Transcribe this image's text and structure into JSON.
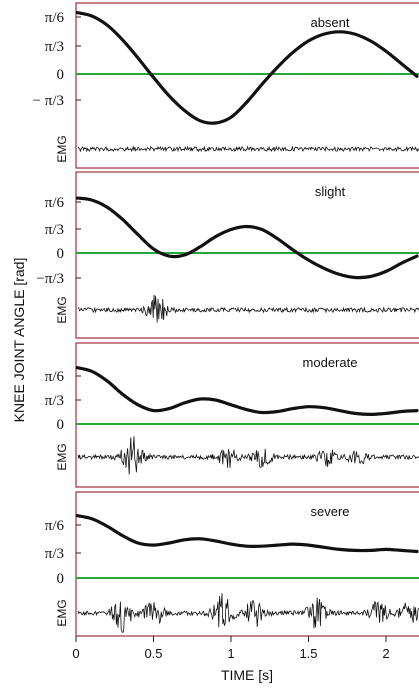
{
  "chart_data": {
    "type": "line",
    "ylabel": "KNEE JOINT ANGLE [rad]",
    "xlabel": "TIME [s]",
    "x_ticks": [
      {
        "value": 0,
        "label": "0"
      },
      {
        "value": 0.5,
        "label": "0.5"
      },
      {
        "value": 1,
        "label": "1"
      },
      {
        "value": 1.5,
        "label": "1.5"
      },
      {
        "value": 2,
        "label": "2"
      }
    ],
    "xlim": [
      0,
      2.2
    ],
    "y_ticks": [
      {
        "value": 1.0,
        "label": "π/6"
      },
      {
        "value": 0.5,
        "label": "π/3"
      },
      {
        "value": 0,
        "label": "0"
      },
      {
        "value": -0.5,
        "label": "− π/3"
      }
    ],
    "baseline_color": "#22a83a",
    "panel_border_color": "#a0303a",
    "emg_label": "EMG",
    "panels": [
      {
        "condition": "absent",
        "y_tick_labels": [
          "π/6",
          "π/3",
          "0",
          "− π/3"
        ],
        "angle": {
          "x": [
            0,
            0.1,
            0.2,
            0.3,
            0.4,
            0.5,
            0.6,
            0.7,
            0.8,
            0.9,
            1.0,
            1.1,
            1.2,
            1.3,
            1.4,
            1.5,
            1.6,
            1.7,
            1.8,
            1.9,
            2.0,
            2.1,
            2.2
          ],
          "y": [
            1.08,
            1.02,
            0.86,
            0.6,
            0.28,
            -0.06,
            -0.38,
            -0.64,
            -0.82,
            -0.86,
            -0.76,
            -0.5,
            -0.18,
            0.12,
            0.38,
            0.58,
            0.7,
            0.74,
            0.7,
            0.58,
            0.4,
            0.18,
            -0.04
          ]
        },
        "emg_bursts": []
      },
      {
        "condition": "slight",
        "y_tick_labels": [
          "π/6",
          "π/3",
          "0",
          "−π/3"
        ],
        "angle": {
          "x": [
            0,
            0.1,
            0.2,
            0.3,
            0.4,
            0.5,
            0.6,
            0.7,
            0.8,
            0.9,
            1.0,
            1.1,
            1.2,
            1.3,
            1.4,
            1.5,
            1.6,
            1.7,
            1.8,
            1.9,
            2.0,
            2.1,
            2.2
          ],
          "y": [
            1.08,
            1.04,
            0.9,
            0.66,
            0.36,
            0.08,
            -0.06,
            -0.04,
            0.12,
            0.32,
            0.46,
            0.52,
            0.46,
            0.28,
            0.06,
            -0.14,
            -0.3,
            -0.42,
            -0.48,
            -0.46,
            -0.36,
            -0.2,
            -0.06
          ]
        },
        "emg_bursts": [
          {
            "t": 0.52,
            "amp": 0.7
          }
        ]
      },
      {
        "condition": "moderate",
        "y_tick_labels": [
          "π/6",
          "π/3",
          "0"
        ],
        "angle": {
          "x": [
            0,
            0.1,
            0.2,
            0.3,
            0.4,
            0.5,
            0.6,
            0.7,
            0.8,
            0.9,
            1.0,
            1.1,
            1.2,
            1.3,
            1.4,
            1.5,
            1.6,
            1.7,
            1.8,
            1.9,
            2.0,
            2.1,
            2.2
          ],
          "y": [
            1.18,
            1.1,
            0.9,
            0.62,
            0.4,
            0.28,
            0.32,
            0.44,
            0.52,
            0.5,
            0.4,
            0.3,
            0.24,
            0.26,
            0.32,
            0.36,
            0.34,
            0.28,
            0.22,
            0.2,
            0.22,
            0.26,
            0.28
          ]
        },
        "emg_bursts": [
          {
            "t": 0.36,
            "amp": 1.0
          },
          {
            "t": 0.98,
            "amp": 0.5
          },
          {
            "t": 1.2,
            "amp": 0.45
          },
          {
            "t": 1.62,
            "amp": 0.4
          },
          {
            "t": 1.82,
            "amp": 0.35
          }
        ]
      },
      {
        "condition": "severe",
        "y_tick_labels": [
          "π/6",
          "π/3",
          "0"
        ],
        "angle": {
          "x": [
            0,
            0.1,
            0.2,
            0.3,
            0.4,
            0.5,
            0.6,
            0.7,
            0.8,
            0.9,
            1.0,
            1.1,
            1.2,
            1.3,
            1.4,
            1.5,
            1.6,
            1.7,
            1.8,
            1.9,
            2.0,
            2.1,
            2.2
          ],
          "y": [
            1.18,
            1.12,
            0.98,
            0.8,
            0.66,
            0.62,
            0.66,
            0.72,
            0.74,
            0.7,
            0.64,
            0.6,
            0.6,
            0.62,
            0.64,
            0.62,
            0.58,
            0.54,
            0.52,
            0.52,
            0.54,
            0.52,
            0.5
          ]
        },
        "emg_bursts": [
          {
            "t": 0.3,
            "amp": 1.0
          },
          {
            "t": 0.5,
            "amp": 0.6
          },
          {
            "t": 0.95,
            "amp": 0.95
          },
          {
            "t": 1.15,
            "amp": 0.7
          },
          {
            "t": 1.55,
            "amp": 0.7
          },
          {
            "t": 1.95,
            "amp": 0.55
          },
          {
            "t": 2.15,
            "amp": 0.5
          }
        ]
      }
    ]
  }
}
